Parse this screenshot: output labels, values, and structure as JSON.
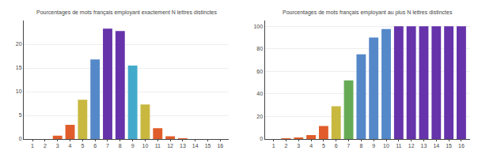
{
  "chart_data": [
    {
      "type": "bar",
      "title": "Pourcentages de mots français employant exactement N lettres distinctes",
      "x": [
        1,
        2,
        3,
        4,
        5,
        6,
        7,
        8,
        9,
        10,
        11,
        12,
        13,
        14,
        15,
        16
      ],
      "values": [
        0.0,
        0.0,
        0.7,
        3.0,
        8.3,
        16.8,
        23.3,
        22.8,
        15.5,
        7.3,
        2.3,
        0.6,
        0.1,
        0.0,
        0.0,
        0.0
      ],
      "colors": [
        "#e05c2a",
        "#e05c2a",
        "#e05c2a",
        "#e05c2a",
        "#c8b840",
        "#5588c8",
        "#6633aa",
        "#6633aa",
        "#44aacc",
        "#c8b840",
        "#e05c2a",
        "#e05c2a",
        "#e05c2a",
        "#e05c2a",
        "#e05c2a",
        "#e05c2a"
      ],
      "xlim": [
        0.3,
        16.7
      ],
      "xticks": [
        1,
        2,
        3,
        4,
        5,
        6,
        7,
        8,
        9,
        10,
        11,
        12,
        13,
        14,
        15,
        16
      ],
      "ylim": [
        0,
        25
      ],
      "yticks": [
        0,
        5,
        10,
        15,
        20
      ],
      "grid": true
    },
    {
      "type": "bar",
      "title": "Pourcentages de mots français employant au plus N lettres distinctes",
      "x": [
        1,
        2,
        3,
        4,
        5,
        6,
        7,
        8,
        9,
        10,
        11,
        12,
        13,
        14,
        15,
        16
      ],
      "values": [
        0.0,
        0.1,
        0.8,
        3.5,
        11.5,
        29.0,
        52.0,
        75.0,
        90.0,
        97.5,
        100.0,
        100.0,
        100.0,
        100.0,
        100.0,
        100.0
      ],
      "colors": [
        "#e05c2a",
        "#e05c2a",
        "#e05c2a",
        "#e05c2a",
        "#e05c2a",
        "#c8b840",
        "#66aa55",
        "#5588c8",
        "#5588c8",
        "#5588c8",
        "#6633aa",
        "#6633aa",
        "#6633aa",
        "#6633aa",
        "#6633aa",
        "#6633aa"
      ],
      "xlim": [
        0.3,
        16.7
      ],
      "xticks": [
        1,
        2,
        3,
        4,
        5,
        6,
        7,
        8,
        9,
        10,
        11,
        12,
        13,
        14,
        15,
        16
      ],
      "ylim": [
        0,
        105
      ],
      "yticks": [
        0,
        20,
        40,
        60,
        80,
        100
      ],
      "grid": true
    }
  ]
}
